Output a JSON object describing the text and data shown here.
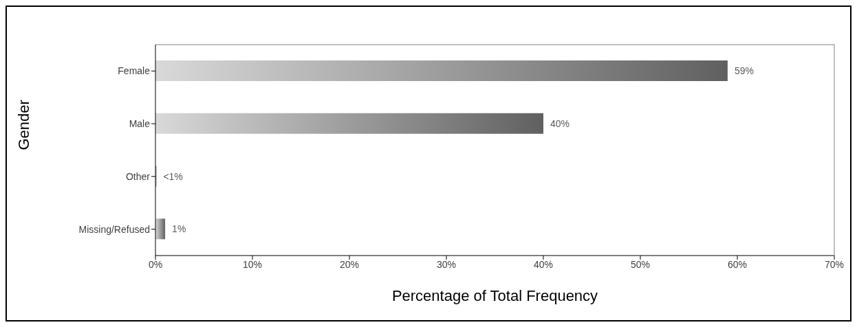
{
  "chart_data": {
    "type": "bar",
    "orientation": "horizontal",
    "xlabel": "Percentage of Total Frequency",
    "ylabel": "Gender",
    "categories": [
      "Female",
      "Male",
      "Other",
      "Missing/Refused"
    ],
    "values": [
      59,
      40,
      0.1,
      1
    ],
    "value_labels": [
      "59%",
      "40%",
      "<1%",
      "1%"
    ],
    "color": "#606060",
    "xlim": [
      0,
      70
    ],
    "xticks": [
      {
        "value": 0,
        "label": "0%"
      },
      {
        "value": 10,
        "label": "10%"
      },
      {
        "value": 20,
        "label": "20%"
      },
      {
        "value": 30,
        "label": "30%"
      },
      {
        "value": 40,
        "label": "40%"
      },
      {
        "value": 50,
        "label": "50%"
      },
      {
        "value": 60,
        "label": "60%"
      },
      {
        "value": 70,
        "label": "70%"
      }
    ],
    "grid": false,
    "legend": false
  }
}
